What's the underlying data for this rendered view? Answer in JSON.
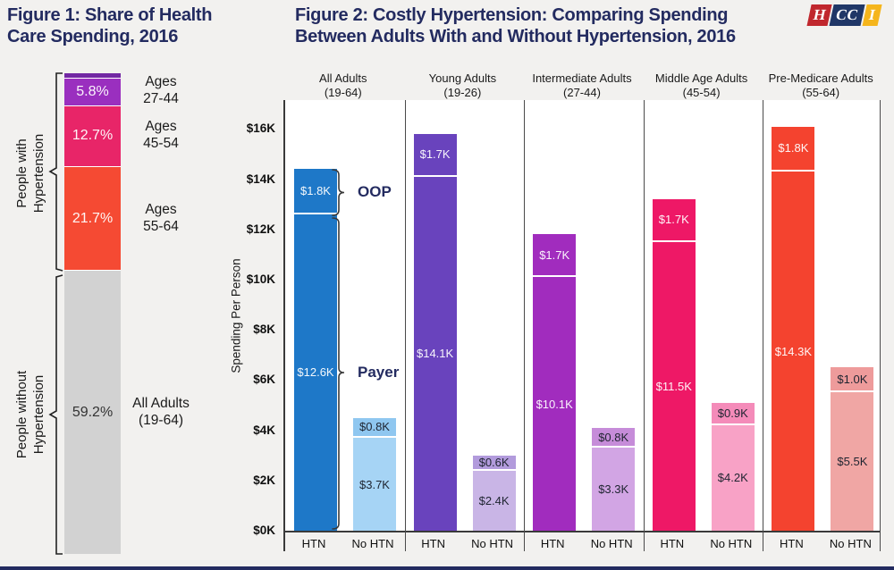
{
  "page": {
    "colors": {
      "background": "#F2F1EF",
      "title_navy": "#232B60",
      "axis": "#3A3A3A",
      "footer": "#232B60"
    }
  },
  "logo": {
    "letters": [
      {
        "text": "H",
        "bg": "#C0272D"
      },
      {
        "text": "CC",
        "bg": "#203767"
      },
      {
        "text": "I",
        "bg": "#F5B51C"
      }
    ]
  },
  "chart_data": [
    {
      "type": "bar",
      "subtype": "stacked-100pct-single-bar",
      "title_lines": [
        "Figure 1: Share of Health",
        "Care Spending, 2016"
      ],
      "segments": [
        {
          "pct": 0.9,
          "label": "",
          "color": "#7227A3",
          "text_color": "rgba(255,255,255,0.95)",
          "side_lines": []
        },
        {
          "pct": 5.8,
          "label": "5.8%",
          "color": "#9A2FBF",
          "text_color": "rgba(255,255,255,0.95)",
          "side_lines": [
            "Ages",
            "27-44"
          ]
        },
        {
          "pct": 12.7,
          "label": "12.7%",
          "color": "#E82568",
          "text_color": "rgba(255,255,255,0.95)",
          "side_lines": [
            "Ages",
            "45-54"
          ]
        },
        {
          "pct": 21.7,
          "label": "21.7%",
          "color": "#F54A33",
          "text_color": "rgba(255,255,255,0.95)",
          "side_lines": [
            "Ages",
            "55-64"
          ]
        },
        {
          "pct": 59.2,
          "label": "59.2%",
          "color": "#D2D2D2",
          "text_color": "#333333",
          "side_lines": [
            "All Adults",
            "(19-64)"
          ]
        }
      ],
      "bracket_labels": [
        {
          "lines": [
            "People with",
            "Hypertension"
          ]
        },
        {
          "lines": [
            "People without",
            "Hypertension"
          ]
        }
      ]
    },
    {
      "type": "bar",
      "subtype": "grouped-stacked",
      "title_lines": [
        "Figure 2: Costly Hypertension: Comparing Spending",
        "Between Adults With and Without Hypertension, 2016"
      ],
      "ylabel": "Spending Per Person",
      "ylim": [
        0,
        16
      ],
      "yticks": [
        {
          "value": 16,
          "label": "$16K"
        },
        {
          "value": 14,
          "label": "$14K"
        },
        {
          "value": 12,
          "label": "$12K"
        },
        {
          "value": 10,
          "label": "$10K"
        },
        {
          "value": 8,
          "label": "$8K"
        },
        {
          "value": 6,
          "label": "$6K"
        },
        {
          "value": 4,
          "label": "$4K"
        },
        {
          "value": 2,
          "label": "$2K"
        },
        {
          "value": 0,
          "label": "$0K"
        }
      ],
      "bar_xlabels": [
        "HTN",
        "No HTN"
      ],
      "annotations": {
        "oop_label": "OOP",
        "payer_label": "Payer"
      },
      "groups": [
        {
          "head_lines": [
            "All Adults",
            "(19-64)"
          ],
          "htn": {
            "payer": 12.6,
            "oop": 1.8,
            "payer_label": "$12.6K",
            "oop_label": "$1.8K",
            "payer_color": "#1E78C8",
            "oop_color": "#1E78C8",
            "text": "rgba(255,255,255,0.95)"
          },
          "no_htn": {
            "payer": 3.7,
            "oop": 0.8,
            "payer_label": "$3.7K",
            "oop_label": "$0.8K",
            "payer_color": "#A6D4F5",
            "oop_color": "#8FC7F0",
            "text": "#1E2430"
          }
        },
        {
          "head_lines": [
            "Young Adults",
            "(19-26)"
          ],
          "htn": {
            "payer": 14.1,
            "oop": 1.7,
            "payer_label": "$14.1K",
            "oop_label": "$1.7K",
            "payer_color": "#6943BD",
            "oop_color": "#6943BD",
            "text": "rgba(255,255,255,0.95)"
          },
          "no_htn": {
            "payer": 2.4,
            "oop": 0.6,
            "payer_label": "$2.4K",
            "oop_label": "$0.6K",
            "payer_color": "#C9B5E6",
            "oop_color": "#B29BDC",
            "text": "#1E2430"
          }
        },
        {
          "head_lines": [
            "Intermediate Adults",
            "(27-44)"
          ],
          "htn": {
            "payer": 10.1,
            "oop": 1.7,
            "payer_label": "$10.1K",
            "oop_label": "$1.7K",
            "payer_color": "#A12CBE",
            "oop_color": "#A12CBE",
            "text": "rgba(255,255,255,0.95)"
          },
          "no_htn": {
            "payer": 3.3,
            "oop": 0.8,
            "payer_label": "$3.3K",
            "oop_label": "$0.8K",
            "payer_color": "#D2A5E4",
            "oop_color": "#C68CD9",
            "text": "#1E2430"
          }
        },
        {
          "head_lines": [
            "Middle Age Adults",
            "(45-54)"
          ],
          "htn": {
            "payer": 11.5,
            "oop": 1.7,
            "payer_label": "$11.5K",
            "oop_label": "$1.7K",
            "payer_color": "#EE1866",
            "oop_color": "#EE1866",
            "text": "rgba(255,255,255,0.95)"
          },
          "no_htn": {
            "payer": 4.2,
            "oop": 0.9,
            "payer_label": "$4.2K",
            "oop_label": "$0.9K",
            "payer_color": "#F8A2C6",
            "oop_color": "#F48BB9",
            "text": "#1E2430"
          }
        },
        {
          "head_lines": [
            "Pre-Medicare Adults",
            "(55-64)"
          ],
          "htn": {
            "payer": 14.3,
            "oop": 1.8,
            "payer_label": "$14.3K",
            "oop_label": "$1.8K",
            "payer_color": "#F4432F",
            "oop_color": "#F4432F",
            "text": "rgba(255,255,255,0.95)"
          },
          "no_htn": {
            "payer": 5.5,
            "oop": 1.0,
            "payer_label": "$5.5K",
            "oop_label": "$1.0K",
            "payer_color": "#F0A6A4",
            "oop_color": "#EE9B9B",
            "text": "#1E2430"
          }
        }
      ]
    }
  ]
}
